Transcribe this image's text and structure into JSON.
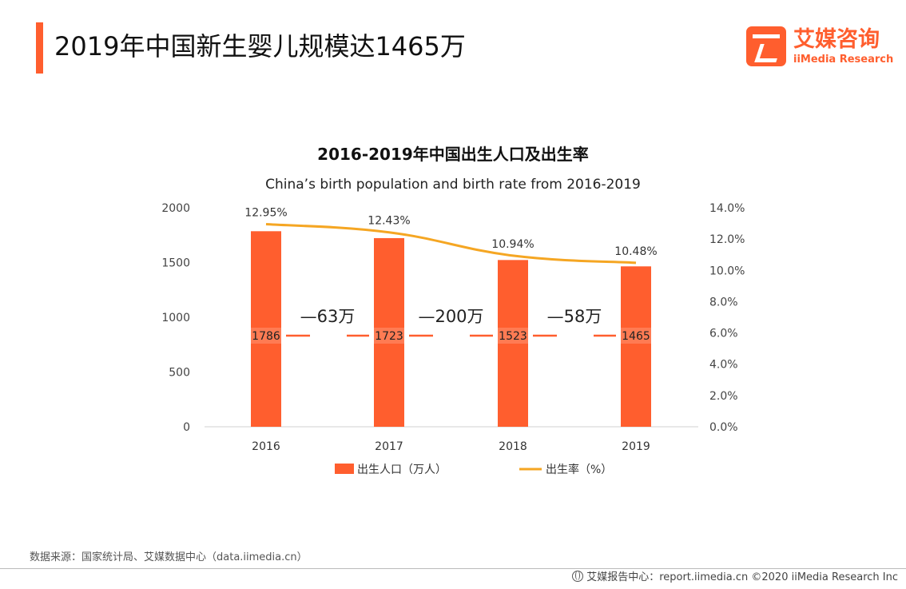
{
  "header": {
    "title": "2019年中国新生婴儿规模达1465万",
    "logo_cn": "艾媒咨询",
    "logo_en": "iiMedia Research"
  },
  "colors": {
    "accent": "#ff5e2e",
    "bar": "#ff5e2e",
    "line": "#f5a623",
    "dash": "#ff5e2e"
  },
  "chart_data": {
    "type": "bar",
    "title": "2016-2019年中国出生人口及出生率",
    "subtitle": "China’s birth population and birth rate from 2016-2019",
    "categories": [
      "2016",
      "2017",
      "2018",
      "2019"
    ],
    "series": [
      {
        "name": "出生人口（万人）",
        "type": "bar",
        "axis": "left",
        "values": [
          1786,
          1723,
          1523,
          1465
        ],
        "labels": [
          "1786",
          "1723",
          "1523",
          "1465"
        ]
      },
      {
        "name": "出生率（%）",
        "type": "line",
        "axis": "right",
        "values": [
          12.95,
          12.43,
          10.94,
          10.48
        ],
        "labels": [
          "12.95%",
          "12.43%",
          "10.94%",
          "10.48%"
        ]
      }
    ],
    "differences": [
      "—63万",
      "—200万",
      "—58万"
    ],
    "ylim": [
      0,
      2000
    ],
    "yticks": [
      "0",
      "500",
      "1000",
      "1500",
      "2000"
    ],
    "y2lim": [
      0,
      14
    ],
    "y2ticks": [
      "0.0%",
      "2.0%",
      "4.0%",
      "6.0%",
      "8.0%",
      "10.0%",
      "12.0%",
      "14.0%"
    ],
    "legend_position": "bottom",
    "grid": false
  },
  "footer": {
    "source": "数据来源：国家统计局、艾媒数据中心（data.iimedia.cn）",
    "credit": "艾媒报告中心：report.iimedia.cn  ©2020  iiMedia Research  Inc"
  }
}
